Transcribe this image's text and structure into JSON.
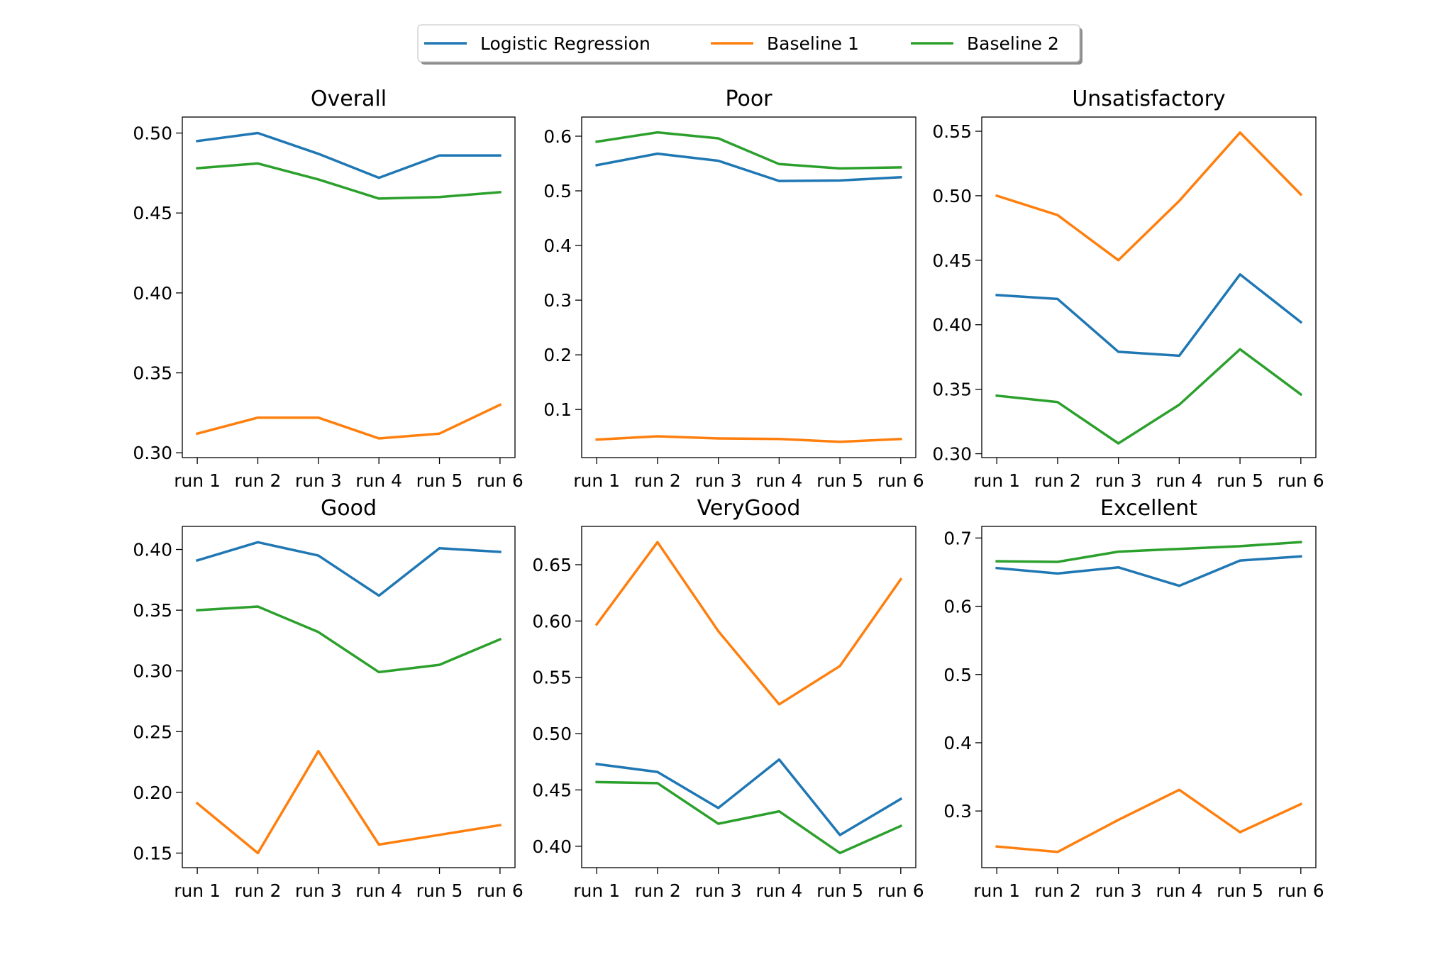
{
  "colors": {
    "logistic_regression": "#1f77b4",
    "baseline_1": "#ff7f0e",
    "baseline_2": "#2ca02c"
  },
  "legend": {
    "position": "top-center",
    "entries": [
      {
        "label": "Logistic Regression",
        "color": "#1f77b4"
      },
      {
        "label": "Baseline 1",
        "color": "#ff7f0e"
      },
      {
        "label": "Baseline 2",
        "color": "#2ca02c"
      }
    ]
  },
  "chart_data": [
    {
      "type": "line",
      "title": "Overall",
      "x": [
        "run 1",
        "run 2",
        "run 3",
        "run 4",
        "run 5",
        "run 6"
      ],
      "ylim": [
        0.297,
        0.51
      ],
      "yticks": [
        0.3,
        0.35,
        0.4,
        0.45,
        0.5
      ],
      "yticklabels": [
        "0.30",
        "0.35",
        "0.40",
        "0.45",
        "0.50"
      ],
      "series": [
        {
          "name": "Logistic Regression",
          "color": "#1f77b4",
          "values": [
            0.495,
            0.5,
            0.487,
            0.472,
            0.486,
            0.486
          ]
        },
        {
          "name": "Baseline 1",
          "color": "#ff7f0e",
          "values": [
            0.312,
            0.322,
            0.322,
            0.309,
            0.312,
            0.33
          ]
        },
        {
          "name": "Baseline 2",
          "color": "#2ca02c",
          "values": [
            0.478,
            0.481,
            0.471,
            0.459,
            0.46,
            0.463
          ]
        }
      ]
    },
    {
      "type": "line",
      "title": "Poor",
      "x": [
        "run 1",
        "run 2",
        "run 3",
        "run 4",
        "run 5",
        "run 6"
      ],
      "ylim": [
        0.012,
        0.635
      ],
      "yticks": [
        0.1,
        0.2,
        0.3,
        0.4,
        0.5,
        0.6
      ],
      "yticklabels": [
        "0.1",
        "0.2",
        "0.3",
        "0.4",
        "0.5",
        "0.6"
      ],
      "series": [
        {
          "name": "Logistic Regression",
          "color": "#1f77b4",
          "values": [
            0.547,
            0.568,
            0.555,
            0.518,
            0.519,
            0.525
          ]
        },
        {
          "name": "Baseline 1",
          "color": "#ff7f0e",
          "values": [
            0.045,
            0.051,
            0.047,
            0.046,
            0.041,
            0.046
          ]
        },
        {
          "name": "Baseline 2",
          "color": "#2ca02c",
          "values": [
            0.59,
            0.607,
            0.596,
            0.549,
            0.541,
            0.543
          ]
        }
      ]
    },
    {
      "type": "line",
      "title": "Unsatisfactory",
      "x": [
        "run 1",
        "run 2",
        "run 3",
        "run 4",
        "run 5",
        "run 6"
      ],
      "ylim": [
        0.297,
        0.561
      ],
      "yticks": [
        0.3,
        0.35,
        0.4,
        0.45,
        0.5,
        0.55
      ],
      "yticklabels": [
        "0.30",
        "0.35",
        "0.40",
        "0.45",
        "0.50",
        "0.55"
      ],
      "series": [
        {
          "name": "Logistic Regression",
          "color": "#1f77b4",
          "values": [
            0.423,
            0.42,
            0.379,
            0.376,
            0.439,
            0.402
          ]
        },
        {
          "name": "Baseline 1",
          "color": "#ff7f0e",
          "values": [
            0.5,
            0.485,
            0.45,
            0.496,
            0.549,
            0.501
          ]
        },
        {
          "name": "Baseline 2",
          "color": "#2ca02c",
          "values": [
            0.345,
            0.34,
            0.308,
            0.338,
            0.381,
            0.346
          ]
        }
      ]
    },
    {
      "type": "line",
      "title": "Good",
      "x": [
        "run 1",
        "run 2",
        "run 3",
        "run 4",
        "run 5",
        "run 6"
      ],
      "ylim": [
        0.138,
        0.419
      ],
      "yticks": [
        0.15,
        0.2,
        0.25,
        0.3,
        0.35,
        0.4
      ],
      "yticklabels": [
        "0.15",
        "0.20",
        "0.25",
        "0.30",
        "0.35",
        "0.40"
      ],
      "series": [
        {
          "name": "Logistic Regression",
          "color": "#1f77b4",
          "values": [
            0.391,
            0.406,
            0.395,
            0.362,
            0.401,
            0.398
          ]
        },
        {
          "name": "Baseline 1",
          "color": "#ff7f0e",
          "values": [
            0.191,
            0.15,
            0.234,
            0.157,
            0.165,
            0.173
          ]
        },
        {
          "name": "Baseline 2",
          "color": "#2ca02c",
          "values": [
            0.35,
            0.353,
            0.332,
            0.299,
            0.305,
            0.326
          ]
        }
      ]
    },
    {
      "type": "line",
      "title": "VeryGood",
      "x": [
        "run 1",
        "run 2",
        "run 3",
        "run 4",
        "run 5",
        "run 6"
      ],
      "ylim": [
        0.381,
        0.684
      ],
      "yticks": [
        0.4,
        0.45,
        0.5,
        0.55,
        0.6,
        0.65
      ],
      "yticklabels": [
        "0.40",
        "0.45",
        "0.50",
        "0.55",
        "0.60",
        "0.65"
      ],
      "series": [
        {
          "name": "Logistic Regression",
          "color": "#1f77b4",
          "values": [
            0.473,
            0.466,
            0.434,
            0.477,
            0.41,
            0.442
          ]
        },
        {
          "name": "Baseline 1",
          "color": "#ff7f0e",
          "values": [
            0.597,
            0.67,
            0.591,
            0.526,
            0.56,
            0.637
          ]
        },
        {
          "name": "Baseline 2",
          "color": "#2ca02c",
          "values": [
            0.457,
            0.456,
            0.42,
            0.431,
            0.394,
            0.418
          ]
        }
      ]
    },
    {
      "type": "line",
      "title": "Excellent",
      "x": [
        "run 1",
        "run 2",
        "run 3",
        "run 4",
        "run 5",
        "run 6"
      ],
      "ylim": [
        0.217,
        0.717
      ],
      "yticks": [
        0.3,
        0.4,
        0.5,
        0.6,
        0.7
      ],
      "yticklabels": [
        "0.3",
        "0.4",
        "0.5",
        "0.6",
        "0.7"
      ],
      "series": [
        {
          "name": "Logistic Regression",
          "color": "#1f77b4",
          "values": [
            0.656,
            0.648,
            0.657,
            0.63,
            0.667,
            0.673
          ]
        },
        {
          "name": "Baseline 1",
          "color": "#ff7f0e",
          "values": [
            0.248,
            0.24,
            0.287,
            0.331,
            0.269,
            0.31
          ]
        },
        {
          "name": "Baseline 2",
          "color": "#2ca02c",
          "values": [
            0.666,
            0.665,
            0.68,
            0.684,
            0.688,
            0.694
          ]
        }
      ]
    }
  ]
}
